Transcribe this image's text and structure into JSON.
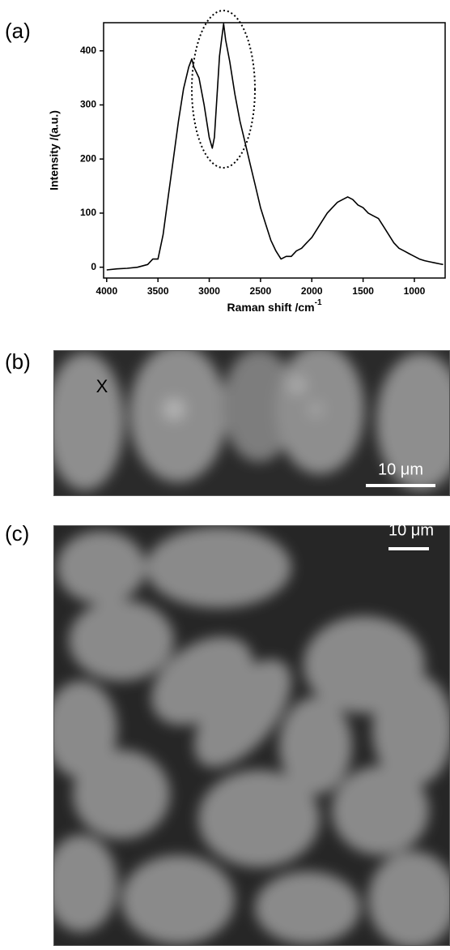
{
  "chart_data": {
    "type": "line",
    "x_label": "Raman shift /cm",
    "x_label_sup": "-1",
    "y_label": "Intensity /(a.u.)",
    "xlim": [
      4030,
      700
    ],
    "ylim": [
      -20,
      452
    ],
    "xticks": [
      4000,
      3500,
      3000,
      2500,
      2000,
      1500,
      1000
    ],
    "yticks": [
      0,
      100,
      200,
      300,
      400
    ],
    "color": "#000000",
    "x": [
      4000,
      3900,
      3800,
      3700,
      3600,
      3550,
      3500,
      3450,
      3400,
      3350,
      3300,
      3250,
      3200,
      3170,
      3150,
      3100,
      3050,
      3000,
      2970,
      2950,
      2920,
      2900,
      2880,
      2860,
      2840,
      2800,
      2750,
      2700,
      2650,
      2600,
      2550,
      2500,
      2450,
      2400,
      2350,
      2300,
      2250,
      2200,
      2150,
      2100,
      2050,
      2000,
      1950,
      1900,
      1850,
      1800,
      1750,
      1700,
      1650,
      1600,
      1550,
      1500,
      1450,
      1400,
      1350,
      1300,
      1250,
      1200,
      1150,
      1100,
      1050,
      1000,
      950,
      900,
      850,
      800,
      750,
      720
    ],
    "values": [
      -5,
      -3,
      -2,
      0,
      5,
      15,
      15,
      60,
      130,
      200,
      270,
      330,
      370,
      385,
      370,
      350,
      300,
      240,
      220,
      240,
      330,
      390,
      420,
      450,
      420,
      380,
      320,
      270,
      230,
      190,
      150,
      110,
      80,
      50,
      30,
      15,
      20,
      20,
      30,
      35,
      45,
      55,
      70,
      85,
      100,
      110,
      120,
      125,
      130,
      125,
      115,
      110,
      100,
      95,
      90,
      75,
      60,
      45,
      35,
      30,
      25,
      20,
      15,
      12,
      10,
      8,
      6,
      5
    ]
  },
  "panels": {
    "a": {
      "label": "(a)"
    },
    "b": {
      "label": "(b)",
      "marker": "X",
      "scale_bar": "10 μm"
    },
    "c": {
      "label": "(c)",
      "scale_bar": "10 μm"
    }
  }
}
